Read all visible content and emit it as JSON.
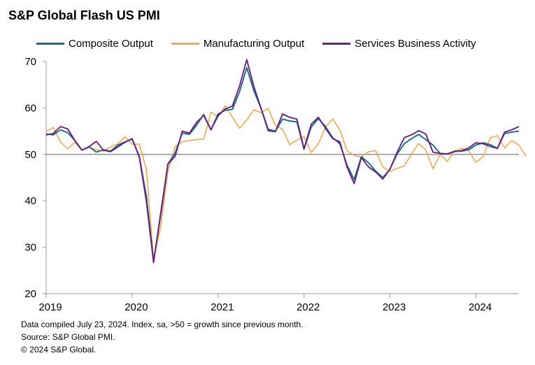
{
  "chart_data": {
    "type": "line",
    "title": "S&P Global Flash US PMI",
    "xlabel": "",
    "ylabel": "",
    "ylim": [
      20,
      70
    ],
    "yticks": [
      20,
      30,
      40,
      50,
      60,
      70
    ],
    "xticks": [
      "2019",
      "2020",
      "2021",
      "2022",
      "2023",
      "2024"
    ],
    "reference_line": 50,
    "x_start": "2019-01",
    "x_end": "2024-07",
    "series": [
      {
        "name": "Composite Output",
        "color": "#1b6a84",
        "values": [
          54.4,
          54.2,
          55.3,
          54.7,
          53.0,
          50.9,
          51.6,
          50.5,
          51.0,
          50.7,
          52.0,
          52.7,
          53.3,
          49.6,
          40.9,
          27.0,
          37.0,
          47.9,
          50.3,
          54.6,
          54.3,
          56.3,
          58.6,
          55.3,
          58.7,
          59.5,
          59.7,
          63.5,
          68.7,
          63.7,
          59.9,
          55.4,
          55.0,
          57.6,
          57.2,
          57.0,
          51.1,
          55.9,
          57.7,
          56.0,
          53.6,
          52.3,
          47.7,
          44.6,
          49.5,
          48.2,
          46.4,
          45.0,
          46.8,
          50.1,
          52.3,
          53.4,
          54.3,
          53.2,
          52.0,
          50.2,
          50.1,
          50.7,
          50.7,
          51.0,
          52.0,
          52.5,
          52.1,
          51.3,
          54.5,
          54.8,
          55.0
        ]
      },
      {
        "name": "Manufacturing Output",
        "color": "#ecaa5a",
        "values": [
          55.0,
          55.8,
          52.7,
          51.2,
          52.6,
          50.9,
          51.6,
          51.0,
          50.7,
          51.6,
          52.3,
          53.8,
          52.2,
          52.2,
          46.7,
          27.4,
          34.5,
          46.5,
          51.7,
          52.7,
          53.0,
          53.2,
          53.3,
          59.1,
          58.1,
          60.5,
          58.0,
          55.6,
          57.4,
          59.6,
          59.0,
          59.9,
          56.2,
          55.4,
          52.1,
          53.1,
          53.8,
          50.4,
          52.3,
          55.9,
          57.6,
          55.3,
          50.8,
          49.8,
          49.4,
          50.6,
          50.8,
          47.3,
          46.3,
          47.0,
          47.5,
          50.1,
          52.3,
          51.0,
          46.9,
          50.0,
          48.5,
          50.7,
          51.3,
          50.8,
          48.3,
          49.5,
          53.6,
          54.0,
          51.4,
          53.0,
          52.0,
          49.6
        ]
      },
      {
        "name": "Services Business Activity",
        "color": "#6a237a",
        "values": [
          54.2,
          54.5,
          56.0,
          55.5,
          53.0,
          50.9,
          51.7,
          52.8,
          50.9,
          50.6,
          51.6,
          52.6,
          53.4,
          49.4,
          39.8,
          26.7,
          37.5,
          47.9,
          49.6,
          55.0,
          54.6,
          56.9,
          58.4,
          55.3,
          58.3,
          59.8,
          60.4,
          64.7,
          70.4,
          64.6,
          59.9,
          55.1,
          54.9,
          58.7,
          58.0,
          57.6,
          51.2,
          56.5,
          58.0,
          55.6,
          53.4,
          52.7,
          47.3,
          43.7,
          49.3,
          47.3,
          46.2,
          44.7,
          46.8,
          50.5,
          53.6,
          54.2,
          55.1,
          54.4,
          50.5,
          50.2,
          50.1,
          50.6,
          50.8,
          51.4,
          52.5,
          52.3,
          51.7,
          51.3,
          54.8,
          55.3,
          56.0
        ]
      }
    ]
  },
  "footnotes": {
    "line1": "Data compiled July 23, 2024. Index,  sa, >50 = growth since previous month.",
    "line2": "Source: S&P Global PMI.",
    "line3": "© 2024 S&P Global."
  }
}
